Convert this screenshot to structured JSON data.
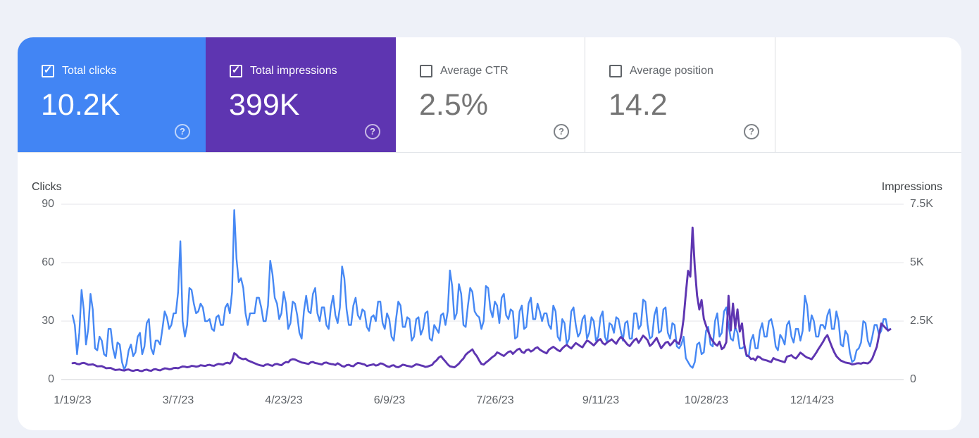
{
  "metrics": [
    {
      "label": "Total clicks",
      "value": "10.2K",
      "checked": true,
      "bg": "#4285f4"
    },
    {
      "label": "Total impressions",
      "value": "399K",
      "checked": true,
      "bg": "#5e35b1"
    },
    {
      "label": "Average CTR",
      "value": "2.5%",
      "checked": false,
      "bg": null
    },
    {
      "label": "Average position",
      "value": "14.2",
      "checked": false,
      "bg": null
    }
  ],
  "icons": {
    "check_glyph": "✓",
    "help_glyph": "?"
  },
  "chart_data": {
    "type": "line",
    "grid": true,
    "legend_position": "none",
    "x_start_date": "1/19/23",
    "left_axis": {
      "title": "Clicks",
      "ticks": [
        "0",
        "30",
        "60",
        "90"
      ],
      "min": 0,
      "max": 90
    },
    "right_axis": {
      "title": "Impressions",
      "ticks": [
        "0",
        "2.5K",
        "5K",
        "7.5K"
      ],
      "min": 0,
      "max": 7500
    },
    "x_tick_labels": [
      "1/19/23",
      "3/7/23",
      "4/23/23",
      "6/9/23",
      "7/26/23",
      "9/11/23",
      "10/28/23",
      "12/14/23"
    ],
    "series": [
      {
        "name": "Total clicks",
        "axis": "left",
        "color": "#4688f4",
        "values": [
          33,
          28,
          13,
          24,
          46,
          36,
          18,
          26,
          44,
          36,
          16,
          15,
          22,
          20,
          13,
          12,
          26,
          26,
          16,
          11,
          19,
          18,
          9,
          5,
          8,
          15,
          18,
          12,
          14,
          22,
          24,
          13,
          17,
          29,
          31,
          16,
          13,
          20,
          20,
          18,
          26,
          35,
          32,
          26,
          28,
          34,
          34,
          45,
          71,
          30,
          22,
          28,
          47,
          46,
          39,
          34,
          35,
          39,
          37,
          30,
          30,
          31,
          26,
          25,
          32,
          33,
          28,
          28,
          37,
          39,
          34,
          45,
          87,
          62,
          50,
          52,
          47,
          34,
          28,
          34,
          34,
          34,
          42,
          42,
          37,
          30,
          30,
          38,
          61,
          54,
          42,
          39,
          31,
          34,
          45,
          39,
          26,
          29,
          40,
          39,
          33,
          24,
          21,
          35,
          43,
          35,
          34,
          44,
          47,
          34,
          30,
          37,
          37,
          28,
          26,
          37,
          43,
          33,
          29,
          37,
          58,
          52,
          36,
          28,
          28,
          38,
          42,
          33,
          31,
          36,
          35,
          27,
          25,
          32,
          33,
          30,
          40,
          40,
          29,
          26,
          34,
          31,
          22,
          20,
          31,
          40,
          38,
          27,
          27,
          32,
          31,
          20,
          22,
          31,
          32,
          23,
          26,
          34,
          35,
          21,
          20,
          28,
          26,
          24,
          33,
          34,
          28,
          35,
          56,
          48,
          31,
          34,
          49,
          44,
          28,
          27,
          38,
          47,
          45,
          35,
          33,
          32,
          26,
          30,
          48,
          47,
          36,
          32,
          40,
          38,
          29,
          42,
          44,
          33,
          31,
          36,
          35,
          21,
          22,
          35,
          38,
          26,
          27,
          39,
          42,
          31,
          31,
          39,
          35,
          30,
          34,
          34,
          28,
          26,
          38,
          35,
          22,
          20,
          31,
          29,
          18,
          21,
          35,
          37,
          28,
          22,
          24,
          31,
          33,
          21,
          24,
          32,
          30,
          20,
          22,
          32,
          35,
          22,
          19,
          29,
          28,
          24,
          32,
          31,
          25,
          20,
          29,
          30,
          21,
          21,
          34,
          34,
          26,
          28,
          41,
          40,
          28,
          21,
          22,
          33,
          37,
          24,
          25,
          36,
          37,
          24,
          21,
          29,
          28,
          17,
          16,
          18,
          22,
          11,
          9,
          7,
          6,
          9,
          18,
          19,
          13,
          14,
          25,
          27,
          18,
          17,
          30,
          34,
          22,
          24,
          35,
          37,
          28,
          21,
          20,
          27,
          24,
          16,
          16,
          17,
          12,
          12,
          20,
          23,
          16,
          16,
          25,
          29,
          22,
          22,
          30,
          31,
          26,
          17,
          15,
          23,
          21,
          18,
          28,
          30,
          22,
          19,
          26,
          26,
          20,
          25,
          43,
          38,
          25,
          33,
          30,
          22,
          22,
          28,
          28,
          26,
          33,
          36,
          26,
          26,
          35,
          30,
          18,
          17,
          25,
          23,
          14,
          9,
          10,
          15,
          16,
          19,
          30,
          29,
          20,
          17,
          22,
          28,
          28,
          23,
          25,
          31,
          31,
          25,
          26
        ]
      },
      {
        "name": "Total impressions",
        "axis": "right",
        "color": "#5e35b1",
        "values": [
          700,
          715,
          670,
          655,
          700,
          715,
          680,
          635,
          640,
          650,
          610,
          565,
          570,
          575,
          530,
          485,
          490,
          495,
          450,
          410,
          420,
          430,
          400,
          385,
          420,
          430,
          390,
          370,
          400,
          410,
          370,
          360,
          410,
          425,
          390,
          375,
          430,
          445,
          410,
          395,
          440,
          480,
          470,
          440,
          450,
          490,
          500,
          485,
          520,
          560,
          550,
          525,
          545,
          585,
          575,
          550,
          565,
          610,
          595,
          580,
          615,
          630,
          600,
          590,
          635,
          670,
          655,
          640,
          695,
          720,
          685,
          800,
          1130,
          1060,
          950,
          900,
          870,
          895,
          820,
          780,
          740,
          700,
          660,
          625,
          600,
          585,
          640,
          655,
          610,
          590,
          655,
          670,
          635,
          615,
          695,
          750,
          735,
          840,
          870,
          855,
          810,
          770,
          730,
          715,
          690,
          665,
          735,
          750,
          705,
          690,
          665,
          645,
          715,
          730,
          690,
          665,
          655,
          625,
          695,
          640,
          575,
          550,
          615,
          630,
          585,
          570,
          655,
          710,
          695,
          665,
          645,
          580,
          605,
          630,
          655,
          600,
          625,
          690,
          675,
          620,
          565,
          540,
          595,
          610,
          545,
          530,
          575,
          635,
          615,
          585,
          565,
          545,
          600,
          655,
          635,
          605,
          585,
          540,
          555,
          590,
          620,
          740,
          820,
          940,
          1000,
          880,
          770,
          650,
          565,
          545,
          525,
          600,
          680,
          800,
          900,
          1060,
          1150,
          1220,
          1290,
          1120,
          1000,
          820,
          670,
          640,
          730,
          800,
          890,
          970,
          1030,
          1160,
          1120,
          1060,
          1010,
          1100,
          1180,
          1210,
          1100,
          1190,
          1280,
          1320,
          1180,
          1140,
          1260,
          1290,
          1200,
          1250,
          1340,
          1380,
          1280,
          1220,
          1170,
          1120,
          1270,
          1340,
          1400,
          1330,
          1260,
          1210,
          1330,
          1420,
          1480,
          1400,
          1330,
          1450,
          1560,
          1500,
          1430,
          1380,
          1530,
          1670,
          1620,
          1540,
          1460,
          1570,
          1680,
          1730,
          1560,
          1500,
          1590,
          1650,
          1720,
          1620,
          1530,
          1700,
          1820,
          1740,
          1620,
          1500,
          1430,
          1560,
          1680,
          1750,
          1570,
          1720,
          1880,
          1790,
          1680,
          1440,
          1520,
          1650,
          1780,
          1550,
          1340,
          1460,
          1580,
          1610,
          1460,
          1560,
          1690,
          1600,
          1520,
          1900,
          2600,
          3700,
          4650,
          4400,
          6500,
          4800,
          3600,
          3000,
          3400,
          2600,
          2300,
          2050,
          1800,
          1650,
          1520,
          1450,
          1620,
          1300,
          1380,
          1600,
          3580,
          2100,
          3250,
          2200,
          3000,
          2050,
          2400,
          1500,
          1050,
          990,
          880,
          905,
          820,
          990,
          950,
          870,
          840,
          815,
          780,
          750,
          920,
          860,
          830,
          800,
          770,
          740,
          980,
          1010,
          1040,
          950,
          900,
          1020,
          1150,
          1080,
          1000,
          940,
          910,
          870,
          1000,
          1140,
          1300,
          1450,
          1600,
          1780,
          1900,
          1650,
          1400,
          1180,
          1000,
          900,
          810,
          770,
          730,
          710,
          690,
          645,
          660,
          690,
          700,
          680,
          720,
          705,
          690,
          760,
          900,
          1150,
          1400,
          1900,
          2400,
          2300,
          2200,
          2100,
          2150
        ]
      }
    ]
  }
}
